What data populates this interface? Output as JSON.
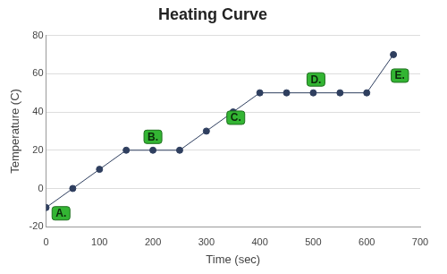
{
  "chart_data": {
    "type": "line",
    "title": "Heating Curve",
    "x_label": "Time (sec)",
    "y_label": "Temperature (C)",
    "x": [
      0,
      50,
      100,
      150,
      200,
      250,
      300,
      350,
      400,
      450,
      500,
      550,
      600,
      650
    ],
    "series": [
      {
        "name": "Temperature",
        "color": "#2f3f5f",
        "marker": "circle",
        "line_style": "solid",
        "values": [
          -10,
          0,
          10,
          20,
          20,
          20,
          30,
          40,
          50,
          50,
          50,
          50,
          50,
          70
        ]
      }
    ],
    "xlim": [
      0,
      700
    ],
    "xticks": [
      0,
      100,
      200,
      300,
      400,
      500,
      600,
      700
    ],
    "ylim": [
      -20,
      80
    ],
    "yticks": [
      -20,
      0,
      20,
      40,
      60,
      80
    ],
    "grid": true,
    "annotations": [
      {
        "text": "A.",
        "x": 28,
        "y": -13
      },
      {
        "text": "B.",
        "x": 200,
        "y": 27
      },
      {
        "text": "C.",
        "x": 355,
        "y": 37
      },
      {
        "text": "D.",
        "x": 505,
        "y": 57
      },
      {
        "text": "E.",
        "x": 662,
        "y": 59
      }
    ]
  }
}
